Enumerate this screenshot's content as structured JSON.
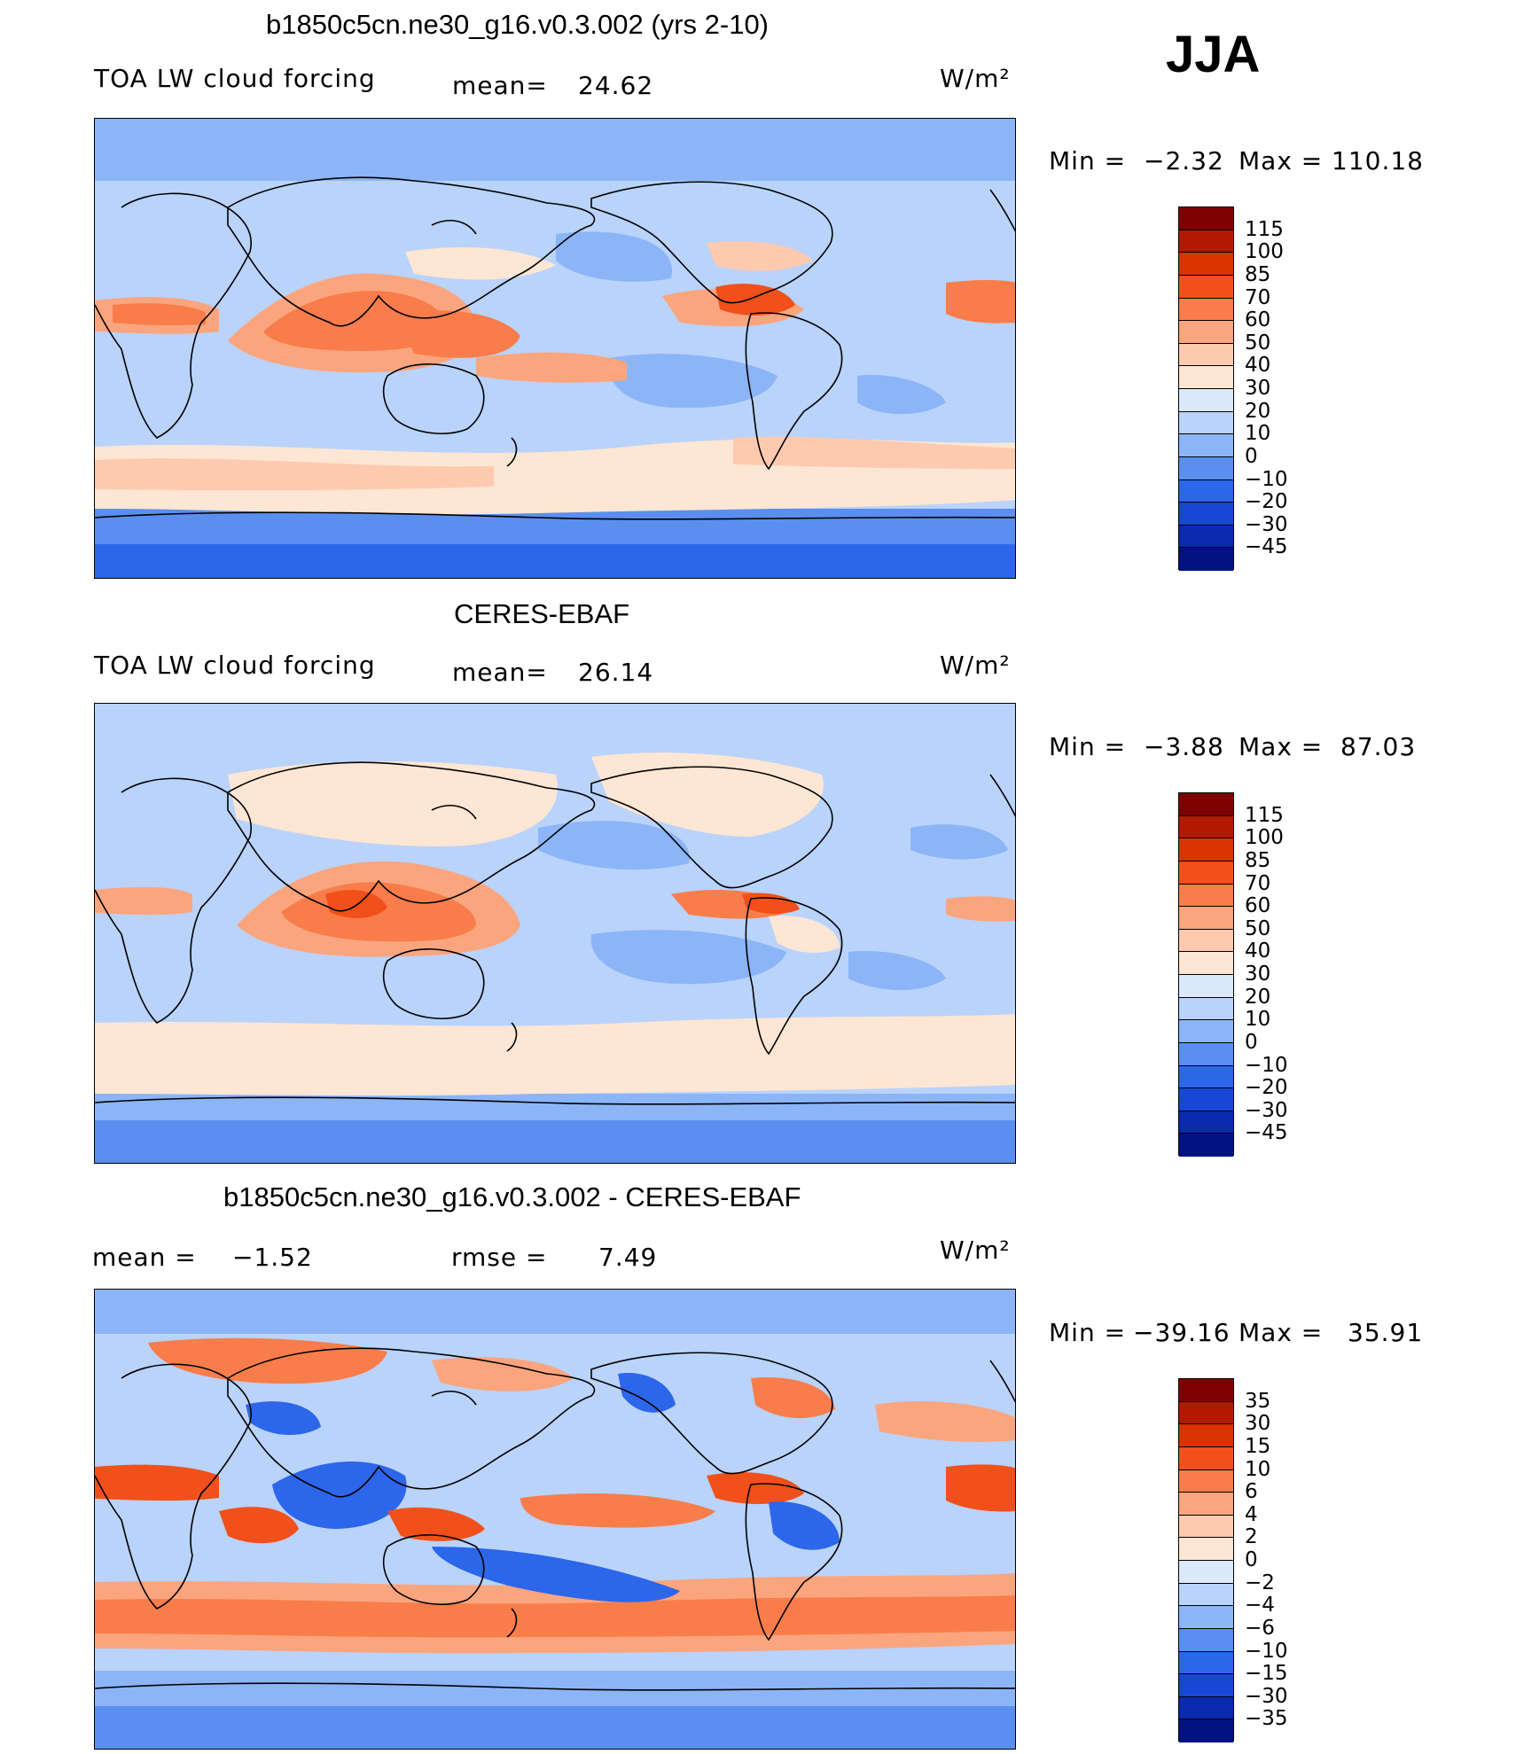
{
  "season": "JJA",
  "units": "W/m²",
  "panels": [
    {
      "id": "model",
      "title": "b1850c5cn.ne30_g16.v0.3.002 (yrs 2-10)",
      "left_label": "TOA LW cloud forcing",
      "mean_label": "mean=",
      "mean_value": "24.62",
      "min_label": "Min =",
      "min_value": "−2.32",
      "max_label": "Max =",
      "max_value": "110.18",
      "colorbar": {
        "labels": [
          "115",
          "100",
          "85",
          "70",
          "60",
          "50",
          "40",
          "30",
          "20",
          "10",
          "0",
          "−10",
          "−20",
          "−30",
          "−45"
        ],
        "colors": [
          "#7f0000",
          "#b21a00",
          "#d93300",
          "#f2501a",
          "#f97d4a",
          "#fba57e",
          "#fdcab0",
          "#fde6d4",
          "#dce9fb",
          "#b9d3fb",
          "#8cb5f8",
          "#5a8ff0",
          "#2c66eb",
          "#1747d4",
          "#0a2ab0",
          "#001380"
        ]
      }
    },
    {
      "id": "obs",
      "title": "CERES-EBAF",
      "left_label": "TOA LW cloud forcing",
      "mean_label": "mean=",
      "mean_value": "26.14",
      "min_label": "Min =",
      "min_value": "−3.88",
      "max_label": "Max =",
      "max_value": "87.03",
      "colorbar": {
        "labels": [
          "115",
          "100",
          "85",
          "70",
          "60",
          "50",
          "40",
          "30",
          "20",
          "10",
          "0",
          "−10",
          "−20",
          "−30",
          "−45"
        ],
        "colors": [
          "#7f0000",
          "#b21a00",
          "#d93300",
          "#f2501a",
          "#f97d4a",
          "#fba57e",
          "#fdcab0",
          "#fde6d4",
          "#dce9fb",
          "#b9d3fb",
          "#8cb5f8",
          "#5a8ff0",
          "#2c66eb",
          "#1747d4",
          "#0a2ab0",
          "#001380"
        ]
      }
    },
    {
      "id": "diff",
      "title": "b1850c5cn.ne30_g16.v0.3.002 - CERES-EBAF",
      "mean_label": "mean =",
      "mean_value": "−1.52",
      "rmse_label": "rmse =",
      "rmse_value": "7.49",
      "min_label": "Min =",
      "min_value": "−39.16",
      "max_label": "Max =",
      "max_value": "35.91",
      "colorbar": {
        "labels": [
          "35",
          "30",
          "15",
          "10",
          "6",
          "4",
          "2",
          "0",
          "−2",
          "−4",
          "−6",
          "−10",
          "−15",
          "−30",
          "−35"
        ],
        "colors": [
          "#7f0000",
          "#b21a00",
          "#d93300",
          "#f2501a",
          "#f97d4a",
          "#fba57e",
          "#fdcab0",
          "#fde6d4",
          "#dce9fb",
          "#b9d3fb",
          "#8cb5f8",
          "#5a8ff0",
          "#2c66eb",
          "#1747d4",
          "#0a2ab0",
          "#001380"
        ]
      }
    }
  ],
  "palette": {
    "deep_blue": "#2c66eb",
    "mid_blue": "#5a8ff0",
    "light_blue": "#8cb5f8",
    "pale_blue": "#b9d3fb",
    "very_pale_blue": "#dce9fb",
    "cream": "#fde6d4",
    "peach": "#fdcab0",
    "salmon": "#fba57e",
    "orange": "#f97d4a",
    "red_orange": "#f2501a",
    "coast": "#000000"
  }
}
